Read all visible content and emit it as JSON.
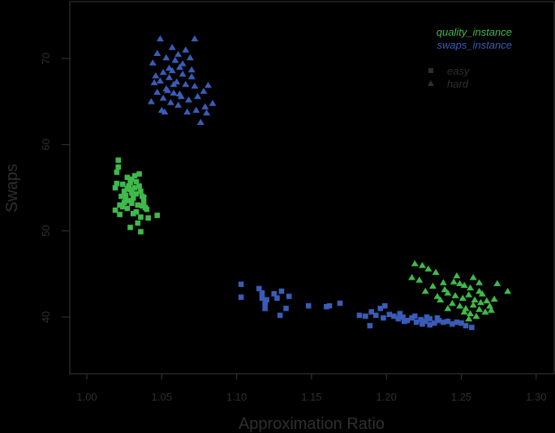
{
  "chart_data": {
    "type": "scatter",
    "title": "",
    "xlabel": "Approximation Ratio",
    "ylabel": "Swaps",
    "xlim": [
      0.98,
      1.32
    ],
    "ylim": [
      33.5,
      74.5
    ],
    "xticks": [
      "1.00",
      "1.05",
      "1.10",
      "1.15",
      "1.20",
      "1.25",
      "1.30"
    ],
    "yticks": [
      "40",
      "50",
      "60",
      "70"
    ],
    "grid": false,
    "background": "#000000",
    "axis_color": "#2f2f2f",
    "legend": {
      "position": "top-right",
      "color_entries": [
        {
          "label": "quality_instance",
          "color": "#3fb94b"
        },
        {
          "label": "swaps_instance",
          "color": "#3a5cb8"
        }
      ],
      "shape_entries": [
        {
          "label": "easy",
          "marker": "square"
        },
        {
          "label": "hard",
          "marker": "triangle"
        }
      ]
    },
    "series": [
      {
        "name": "quality_instance / easy",
        "color": "#3fb94b",
        "marker": "square",
        "points": [
          [
            1.021,
            58.2
          ],
          [
            1.021,
            57.4
          ],
          [
            1.02,
            55.5
          ],
          [
            1.019,
            55.0
          ],
          [
            1.027,
            56.2
          ],
          [
            1.03,
            56.0
          ],
          [
            1.035,
            55.2
          ],
          [
            1.038,
            53.9
          ],
          [
            1.024,
            55.4
          ],
          [
            1.029,
            54.8
          ],
          [
            1.032,
            55.0
          ],
          [
            1.026,
            54.1
          ],
          [
            1.028,
            53.5
          ],
          [
            1.031,
            53.8
          ],
          [
            1.033,
            54.3
          ],
          [
            1.036,
            54.6
          ],
          [
            1.022,
            53.0
          ],
          [
            1.024,
            52.8
          ],
          [
            1.027,
            52.6
          ],
          [
            1.03,
            53.2
          ],
          [
            1.034,
            53.0
          ],
          [
            1.037,
            52.9
          ],
          [
            1.039,
            52.7
          ],
          [
            1.025,
            54.6
          ],
          [
            1.029,
            55.6
          ],
          [
            1.032,
            56.4
          ],
          [
            1.035,
            56.6
          ],
          [
            1.023,
            54.0
          ],
          [
            1.026,
            53.6
          ],
          [
            1.04,
            52.5
          ],
          [
            1.033,
            52.2
          ],
          [
            1.031,
            52.0
          ],
          [
            1.019,
            52.4
          ],
          [
            1.022,
            51.9
          ],
          [
            1.047,
            51.8
          ],
          [
            1.036,
            51.6
          ],
          [
            1.041,
            51.5
          ],
          [
            1.034,
            50.9
          ],
          [
            1.029,
            50.4
          ],
          [
            1.036,
            49.9
          ],
          [
            1.027,
            54.9
          ],
          [
            1.03,
            54.4
          ],
          [
            1.028,
            55.2
          ],
          [
            1.033,
            55.7
          ],
          [
            1.025,
            53.3
          ],
          [
            1.037,
            54.0
          ],
          [
            1.02,
            56.8
          ],
          [
            1.038,
            53.3
          ]
        ]
      },
      {
        "name": "quality_instance / hard",
        "color": "#3fb94b",
        "marker": "triangle",
        "points": [
          [
            1.219,
            46.2
          ],
          [
            1.224,
            46.0
          ],
          [
            1.233,
            45.2
          ],
          [
            1.228,
            45.6
          ],
          [
            1.217,
            44.6
          ],
          [
            1.222,
            44.3
          ],
          [
            1.238,
            44.0
          ],
          [
            1.245,
            44.1
          ],
          [
            1.231,
            43.6
          ],
          [
            1.249,
            43.9
          ],
          [
            1.252,
            43.7
          ],
          [
            1.256,
            43.4
          ],
          [
            1.262,
            43.0
          ],
          [
            1.281,
            43.0
          ],
          [
            1.274,
            43.9
          ],
          [
            1.241,
            42.8
          ],
          [
            1.246,
            42.5
          ],
          [
            1.251,
            42.2
          ],
          [
            1.255,
            42.6
          ],
          [
            1.259,
            42.0
          ],
          [
            1.263,
            41.7
          ],
          [
            1.267,
            41.9
          ],
          [
            1.272,
            42.1
          ],
          [
            1.244,
            41.6
          ],
          [
            1.249,
            41.3
          ],
          [
            1.253,
            41.0
          ],
          [
            1.258,
            41.4
          ],
          [
            1.262,
            40.9
          ],
          [
            1.266,
            40.6
          ],
          [
            1.27,
            40.8
          ],
          [
            1.256,
            40.4
          ],
          [
            1.26,
            40.1
          ],
          [
            1.236,
            42.0
          ],
          [
            1.241,
            41.0
          ],
          [
            1.239,
            43.2
          ],
          [
            1.226,
            43.0
          ],
          [
            1.234,
            42.4
          ],
          [
            1.264,
            42.7
          ],
          [
            1.252,
            40.6
          ],
          [
            1.258,
            44.6
          ],
          [
            1.247,
            44.8
          ],
          [
            1.262,
            44.0
          ],
          [
            1.269,
            41.3
          ],
          [
            1.255,
            39.8
          ]
        ]
      },
      {
        "name": "swaps_instance / easy",
        "color": "#3a5cb8",
        "marker": "square",
        "points": [
          [
            1.103,
            43.8
          ],
          [
            1.103,
            42.3
          ],
          [
            1.115,
            43.3
          ],
          [
            1.117,
            42.8
          ],
          [
            1.117,
            42.2
          ],
          [
            1.119,
            41.6
          ],
          [
            1.12,
            42.0
          ],
          [
            1.119,
            41.0
          ],
          [
            1.125,
            42.7
          ],
          [
            1.127,
            42.2
          ],
          [
            1.13,
            43.0
          ],
          [
            1.135,
            42.4
          ],
          [
            1.129,
            40.2
          ],
          [
            1.133,
            41.0
          ],
          [
            1.148,
            41.3
          ],
          [
            1.16,
            41.2
          ],
          [
            1.162,
            41.3
          ],
          [
            1.169,
            41.6
          ],
          [
            1.182,
            40.2
          ],
          [
            1.186,
            40.1
          ],
          [
            1.189,
            39.0
          ],
          [
            1.19,
            40.6
          ],
          [
            1.193,
            40.2
          ],
          [
            1.196,
            41.0
          ],
          [
            1.199,
            41.3
          ],
          [
            1.202,
            40.3
          ],
          [
            1.205,
            40.1
          ],
          [
            1.208,
            39.8
          ],
          [
            1.211,
            40.0
          ],
          [
            1.214,
            39.6
          ],
          [
            1.217,
            39.9
          ],
          [
            1.22,
            39.4
          ],
          [
            1.223,
            39.7
          ],
          [
            1.226,
            39.5
          ],
          [
            1.229,
            39.8
          ],
          [
            1.232,
            39.3
          ],
          [
            1.235,
            39.6
          ],
          [
            1.238,
            39.4
          ],
          [
            1.241,
            39.5
          ],
          [
            1.244,
            39.2
          ],
          [
            1.247,
            39.4
          ],
          [
            1.25,
            39.3
          ],
          [
            1.253,
            39.0
          ],
          [
            1.257,
            38.8
          ],
          [
            1.212,
            39.5
          ],
          [
            1.219,
            40.1
          ],
          [
            1.227,
            40.0
          ],
          [
            1.234,
            39.9
          ],
          [
            1.224,
            39.2
          ],
          [
            1.229,
            39.1
          ],
          [
            1.209,
            40.4
          ],
          [
            1.198,
            39.9
          ]
        ]
      },
      {
        "name": "swaps_instance / hard",
        "color": "#3a5cb8",
        "marker": "triangle",
        "points": [
          [
            1.049,
            72.3
          ],
          [
            1.072,
            72.3
          ],
          [
            1.047,
            70.6
          ],
          [
            1.053,
            70.1
          ],
          [
            1.059,
            69.8
          ],
          [
            1.064,
            69.4
          ],
          [
            1.044,
            69.5
          ],
          [
            1.062,
            69.0
          ],
          [
            1.07,
            68.7
          ],
          [
            1.057,
            68.6
          ],
          [
            1.051,
            68.4
          ],
          [
            1.046,
            68.0
          ],
          [
            1.049,
            67.4
          ],
          [
            1.055,
            67.8
          ],
          [
            1.06,
            67.3
          ],
          [
            1.066,
            67.0
          ],
          [
            1.072,
            66.8
          ],
          [
            1.078,
            66.2
          ],
          [
            1.053,
            66.5
          ],
          [
            1.058,
            66.0
          ],
          [
            1.063,
            65.6
          ],
          [
            1.068,
            65.2
          ],
          [
            1.047,
            66.1
          ],
          [
            1.051,
            65.4
          ],
          [
            1.056,
            64.9
          ],
          [
            1.061,
            64.6
          ],
          [
            1.073,
            64.0
          ],
          [
            1.079,
            64.4
          ],
          [
            1.084,
            64.8
          ],
          [
            1.067,
            63.8
          ],
          [
            1.076,
            62.6
          ],
          [
            1.05,
            64.0
          ],
          [
            1.043,
            65.0
          ],
          [
            1.055,
            68.9
          ],
          [
            1.061,
            70.5
          ],
          [
            1.066,
            71.0
          ],
          [
            1.058,
            67.0
          ],
          [
            1.054,
            66.3
          ],
          [
            1.062,
            65.9
          ],
          [
            1.045,
            67.2
          ],
          [
            1.074,
            65.6
          ],
          [
            1.081,
            66.9
          ],
          [
            1.07,
            67.9
          ],
          [
            1.064,
            68.2
          ],
          [
            1.057,
            71.3
          ],
          [
            1.069,
            70.1
          ],
          [
            1.052,
            63.8
          ],
          [
            1.08,
            63.7
          ]
        ]
      }
    ]
  }
}
